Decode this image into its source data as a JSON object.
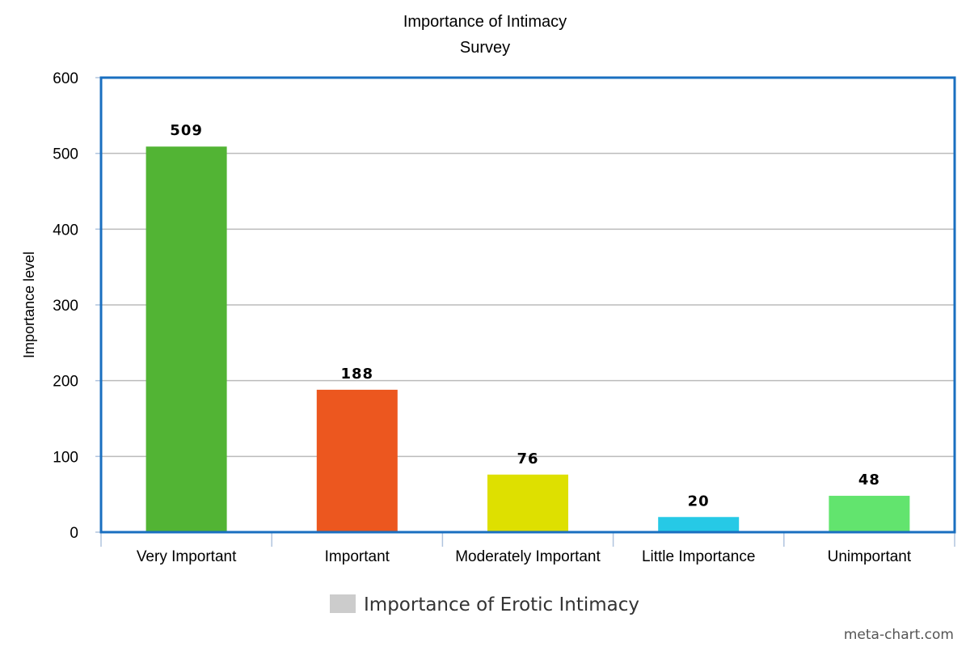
{
  "chart_data": {
    "type": "bar",
    "title": "Importance of Intimacy",
    "subtitle": "Survey",
    "xlabel": "",
    "ylabel": "Importance level",
    "ylim": [
      0,
      600
    ],
    "yticks": [
      0,
      100,
      200,
      300,
      400,
      500,
      600
    ],
    "grid": true,
    "legend_position": "bottom",
    "categories": [
      "Very Important",
      "Important",
      "Moderately Important",
      "Little Importance",
      "Unimportant"
    ],
    "series": [
      {
        "name": "Importance of Erotic Intimacy",
        "values": [
          509,
          188,
          76,
          20,
          48
        ],
        "data_labels": [
          "509",
          "188",
          "76",
          "20",
          "48"
        ],
        "colors": [
          "#52b434",
          "#ec571f",
          "#dee000",
          "#26c9e6",
          "#62e46e"
        ]
      }
    ],
    "legend_swatch_color": "#cccccc",
    "frame_color": "#1a6fc0",
    "grid_color": "#bbbbbb"
  },
  "watermark": "meta-chart.com"
}
